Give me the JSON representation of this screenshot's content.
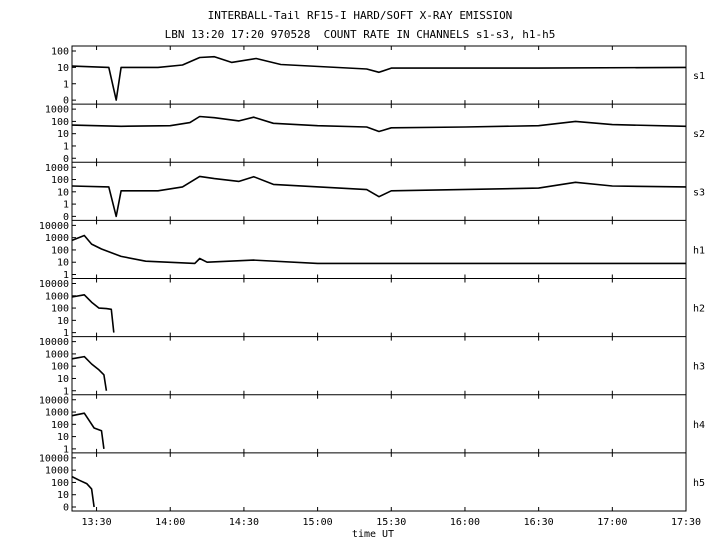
{
  "chart_data": {
    "type": "line",
    "title": "INTERBALL-Tail RF15-I HARD/SOFT X-RAY EMISSION",
    "subtitle": "LBN 13:20 17:20 970528  COUNT RATE IN CHANNELS s1-s3, h1-h5",
    "xlabel": "time UT",
    "x_ticks": [
      "13:30",
      "14:00",
      "14:30",
      "15:00",
      "15:30",
      "16:00",
      "16:30",
      "17:00",
      "17:30"
    ],
    "xlim": [
      "13:20",
      "17:30"
    ],
    "yscale": "log",
    "grid": false,
    "panels": [
      {
        "name": "s1",
        "y_ticks": [
          "100",
          "10",
          "1",
          "0"
        ],
        "series": [
          {
            "t": "13:20",
            "v": 12
          },
          {
            "t": "13:35",
            "v": 10
          },
          {
            "t": "13:38",
            "v": 0
          },
          {
            "t": "13:40",
            "v": 10
          },
          {
            "t": "13:55",
            "v": 10
          },
          {
            "t": "14:05",
            "v": 14
          },
          {
            "t": "14:12",
            "v": 40
          },
          {
            "t": "14:18",
            "v": 45
          },
          {
            "t": "14:25",
            "v": 20
          },
          {
            "t": "14:35",
            "v": 35
          },
          {
            "t": "14:45",
            "v": 15
          },
          {
            "t": "15:20",
            "v": 8
          },
          {
            "t": "15:25",
            "v": 5
          },
          {
            "t": "15:30",
            "v": 9
          },
          {
            "t": "16:00",
            "v": 9
          },
          {
            "t": "16:30",
            "v": 9
          },
          {
            "t": "17:30",
            "v": 10
          }
        ]
      },
      {
        "name": "s2",
        "y_ticks": [
          "1000",
          "100",
          "10",
          "1",
          "0"
        ],
        "series": [
          {
            "t": "13:20",
            "v": 50
          },
          {
            "t": "13:40",
            "v": 40
          },
          {
            "t": "14:00",
            "v": 45
          },
          {
            "t": "14:08",
            "v": 80
          },
          {
            "t": "14:12",
            "v": 250
          },
          {
            "t": "14:18",
            "v": 200
          },
          {
            "t": "14:28",
            "v": 110
          },
          {
            "t": "14:34",
            "v": 220
          },
          {
            "t": "14:42",
            "v": 70
          },
          {
            "t": "15:00",
            "v": 45
          },
          {
            "t": "15:20",
            "v": 35
          },
          {
            "t": "15:25",
            "v": 15
          },
          {
            "t": "15:30",
            "v": 30
          },
          {
            "t": "16:00",
            "v": 35
          },
          {
            "t": "16:30",
            "v": 45
          },
          {
            "t": "16:45",
            "v": 100
          },
          {
            "t": "17:00",
            "v": 55
          },
          {
            "t": "17:30",
            "v": 40
          }
        ]
      },
      {
        "name": "s3",
        "y_ticks": [
          "1000",
          "100",
          "10",
          "1",
          "0"
        ],
        "series": [
          {
            "t": "13:20",
            "v": 30
          },
          {
            "t": "13:35",
            "v": 25
          },
          {
            "t": "13:38",
            "v": 0
          },
          {
            "t": "13:40",
            "v": 12
          },
          {
            "t": "13:55",
            "v": 12
          },
          {
            "t": "14:05",
            "v": 25
          },
          {
            "t": "14:12",
            "v": 180
          },
          {
            "t": "14:18",
            "v": 120
          },
          {
            "t": "14:28",
            "v": 70
          },
          {
            "t": "14:34",
            "v": 170
          },
          {
            "t": "14:42",
            "v": 40
          },
          {
            "t": "15:20",
            "v": 15
          },
          {
            "t": "15:25",
            "v": 4
          },
          {
            "t": "15:30",
            "v": 12
          },
          {
            "t": "16:30",
            "v": 20
          },
          {
            "t": "16:45",
            "v": 60
          },
          {
            "t": "17:00",
            "v": 30
          },
          {
            "t": "17:30",
            "v": 25
          }
        ]
      },
      {
        "name": "h1",
        "y_ticks": [
          "10000",
          "1000",
          "100",
          "10",
          "1"
        ],
        "series": [
          {
            "t": "13:20",
            "v": 600
          },
          {
            "t": "13:25",
            "v": 1500
          },
          {
            "t": "13:28",
            "v": 300
          },
          {
            "t": "13:32",
            "v": 120
          },
          {
            "t": "13:40",
            "v": 30
          },
          {
            "t": "13:50",
            "v": 12
          },
          {
            "t": "14:10",
            "v": 8
          },
          {
            "t": "14:12",
            "v": 20
          },
          {
            "t": "14:15",
            "v": 10
          },
          {
            "t": "14:34",
            "v": 15
          },
          {
            "t": "15:00",
            "v": 8
          },
          {
            "t": "15:30",
            "v": 8
          },
          {
            "t": "16:00",
            "v": 8
          },
          {
            "t": "17:30",
            "v": 8
          }
        ]
      },
      {
        "name": "h2",
        "y_ticks": [
          "10000",
          "1000",
          "100",
          "10",
          "1"
        ],
        "series": [
          {
            "t": "13:20",
            "v": 800
          },
          {
            "t": "13:25",
            "v": 1200
          },
          {
            "t": "13:28",
            "v": 300
          },
          {
            "t": "13:31",
            "v": 100
          },
          {
            "t": "13:34",
            "v": 90
          },
          {
            "t": "13:36",
            "v": 80
          },
          {
            "t": "13:37",
            "v": 1
          }
        ]
      },
      {
        "name": "h3",
        "y_ticks": [
          "10000",
          "1000",
          "100",
          "10",
          "1"
        ],
        "series": [
          {
            "t": "13:20",
            "v": 400
          },
          {
            "t": "13:25",
            "v": 600
          },
          {
            "t": "13:28",
            "v": 150
          },
          {
            "t": "13:31",
            "v": 50
          },
          {
            "t": "13:33",
            "v": 20
          },
          {
            "t": "13:34",
            "v": 1
          }
        ]
      },
      {
        "name": "h4",
        "y_ticks": [
          "10000",
          "1000",
          "100",
          "10",
          "1"
        ],
        "series": [
          {
            "t": "13:20",
            "v": 500
          },
          {
            "t": "13:25",
            "v": 800
          },
          {
            "t": "13:27",
            "v": 200
          },
          {
            "t": "13:29",
            "v": 50
          },
          {
            "t": "13:32",
            "v": 30
          },
          {
            "t": "13:33",
            "v": 1
          }
        ]
      },
      {
        "name": "h5",
        "y_ticks": [
          "10000",
          "1000",
          "100",
          "10",
          "0"
        ],
        "series": [
          {
            "t": "13:20",
            "v": 300
          },
          {
            "t": "13:23",
            "v": 150
          },
          {
            "t": "13:26",
            "v": 80
          },
          {
            "t": "13:28",
            "v": 30
          },
          {
            "t": "13:29",
            "v": 1
          }
        ]
      }
    ]
  }
}
